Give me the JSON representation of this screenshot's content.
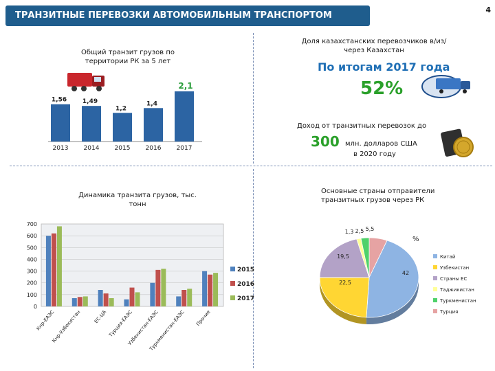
{
  "header": {
    "title": "ТРАНЗИТНЫЕ ПЕРЕВОЗКИ АВТОМОБИЛЬНЫМ ТРАНСПОРТОМ",
    "page_number": "4"
  },
  "transit_block": {
    "caption": "Общий транзит грузов по территории РК за 5 лет"
  },
  "share_block": {
    "caption": "Доля казахстанских перевозчиков в/из/через Казахстан",
    "period": "По итогам 2017 года",
    "value": "52%"
  },
  "income_block": {
    "caption": "Доход от транзитных перевозок до",
    "value": "300",
    "unit": "млн. долларов США",
    "year": "в 2020 году"
  },
  "dynamics_block": {
    "caption": "Динамика  транзита грузов, тыс. тонн"
  },
  "countries_block": {
    "caption": "Основные страны отправители транзитных грузов  через РК",
    "unit": "%"
  },
  "chart_data": [
    {
      "type": "bar",
      "categories": [
        "2013",
        "2014",
        "2015",
        "2016",
        "2017"
      ],
      "values": [
        1.56,
        1.49,
        1.2,
        1.4,
        2.1
      ],
      "value_labels": [
        "1,56",
        "1,49",
        "1,2",
        "1,4",
        "2,1"
      ],
      "ylim": [
        0,
        2.3
      ],
      "colors": {
        "bar": "#2c64a3",
        "highlight_label": "#2e9e3e"
      }
    },
    {
      "type": "bar",
      "categories": [
        "Кнр-ЕАЭС",
        "Кнр-Узбекистан",
        "ЕС-ЦА",
        "Турция-ЕАЭС",
        "Узбекистан-ЕАЭС",
        "Туркменистан-ЕАЭС",
        "Прочие"
      ],
      "series": [
        {
          "name": "2015",
          "values": [
            600,
            70,
            140,
            60,
            200,
            85,
            300
          ],
          "color": "#4f81bd"
        },
        {
          "name": "2016",
          "values": [
            620,
            80,
            110,
            160,
            310,
            140,
            270
          ],
          "color": "#c0504d"
        },
        {
          "name": "2017",
          "values": [
            680,
            85,
            70,
            120,
            320,
            150,
            285
          ],
          "color": "#9bbb59"
        }
      ],
      "yticks": [
        "0",
        "100",
        "200",
        "300",
        "400",
        "500",
        "600",
        "700"
      ],
      "ylim": [
        0,
        700
      ],
      "legend": "right"
    },
    {
      "type": "pie",
      "labels": [
        "Китай",
        "Узбекистан",
        "Страны ЕС",
        "Таджикистан",
        "Туркменистан",
        "Турция"
      ],
      "values": [
        42,
        22.5,
        19.5,
        1.3,
        2.5,
        5.5
      ],
      "value_labels": [
        "42",
        "22,5",
        "19,5",
        "1,3",
        "2,5",
        "5,5"
      ],
      "colors": [
        "#8eb4e3",
        "#ffd633",
        "#b3a2c7",
        "#ffff99",
        "#4fd16a",
        "#e6a3a3"
      ],
      "legend": "right"
    }
  ]
}
